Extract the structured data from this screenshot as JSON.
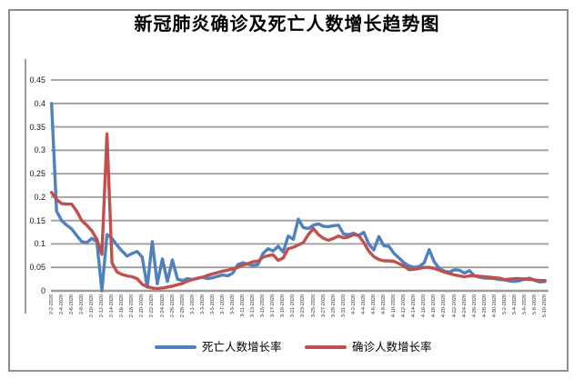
{
  "chart_data": {
    "type": "line",
    "title": "新冠肺炎确诊及死亡人数增长趋势图",
    "xlabel": "",
    "ylabel": "",
    "ylim": [
      0,
      0.45
    ],
    "grid": true,
    "legend_position": "bottom",
    "x_tick_every": 2,
    "yticks": [
      {
        "v": 0,
        "label": "0"
      },
      {
        "v": 0.05,
        "label": "0.05"
      },
      {
        "v": 0.1,
        "label": "0.1"
      },
      {
        "v": 0.15,
        "label": "0.15"
      },
      {
        "v": 0.2,
        "label": "0.2"
      },
      {
        "v": 0.25,
        "label": "0.25"
      },
      {
        "v": 0.3,
        "label": "0.3"
      },
      {
        "v": 0.35,
        "label": "0.35"
      },
      {
        "v": 0.4,
        "label": "0.4"
      },
      {
        "v": 0.45,
        "label": "0.45"
      }
    ],
    "x": [
      "2-2-2020",
      "2-3-2020",
      "2-4-2020",
      "2-5-2020",
      "2-6-2020",
      "2-7-2020",
      "2-8-2020",
      "2-9-2020",
      "2-10-2020",
      "2-11-2020",
      "2-12-2020",
      "2-13-2020",
      "2-14-2020",
      "2-15-2020",
      "2-16-2020",
      "2-17-2020",
      "2-18-2020",
      "2-19-2020",
      "2-20-2020",
      "2-21-2020",
      "2-22-2020",
      "2-23-2020",
      "2-24-2020",
      "2-25-2020",
      "2-26-2020",
      "2-27-2020",
      "2-28-2020",
      "2-29-2020",
      "3-1-2020",
      "3-2-2020",
      "3-3-2020",
      "3-4-2020",
      "3-5-2020",
      "3-6-2020",
      "3-7-2020",
      "3-8-2020",
      "3-9-2020",
      "3-10-2020",
      "3-11-2020",
      "3-12-2020",
      "3-13-2020",
      "3-14-2020",
      "3-15-2020",
      "3-16-2020",
      "3-17-2020",
      "3-18-2020",
      "3-19-2020",
      "3-20-2020",
      "3-21-2020",
      "3-22-2020",
      "3-23-2020",
      "3-24-2020",
      "3-25-2020",
      "3-26-2020",
      "3-27-2020",
      "3-28-2020",
      "3-29-2020",
      "3-30-2020",
      "3-31-2020",
      "4-1-2020",
      "4-2-2020",
      "4-3-2020",
      "4-4-2020",
      "4-5-2020",
      "4-6-2020",
      "4-7-2020",
      "4-8-2020",
      "4-9-2020",
      "4-10-2020",
      "4-11-2020",
      "4-12-2020",
      "4-13-2020",
      "4-14-2020",
      "4-15-2020",
      "4-16-2020",
      "4-17-2020",
      "4-18-2020",
      "4-19-2020",
      "4-20-2020",
      "4-21-2020",
      "4-22-2020",
      "4-23-2020",
      "4-24-2020",
      "4-25-2020",
      "4-26-2020",
      "4-27-2020",
      "4-28-2020",
      "4-29-2020",
      "4-30-2020",
      "5-1-2020",
      "5-2-2020",
      "5-3-2020",
      "5-4-2020",
      "5-5-2020",
      "5-6-2020",
      "5-7-2020",
      "5-8-2020",
      "5-9-2020",
      "5-10-2020"
    ],
    "series": [
      {
        "name": "死亡人数增长率",
        "color": "#4F81BD",
        "values": [
          0.4,
          0.17,
          0.15,
          0.14,
          0.132,
          0.118,
          0.105,
          0.103,
          0.112,
          0.105,
          0.0,
          0.12,
          0.112,
          0.097,
          0.085,
          0.074,
          0.08,
          0.084,
          0.072,
          0.008,
          0.105,
          0.015,
          0.068,
          0.02,
          0.066,
          0.025,
          0.022,
          0.026,
          0.024,
          0.027,
          0.029,
          0.026,
          0.028,
          0.031,
          0.034,
          0.032,
          0.038,
          0.056,
          0.06,
          0.057,
          0.054,
          0.056,
          0.08,
          0.09,
          0.085,
          0.095,
          0.083,
          0.117,
          0.11,
          0.153,
          0.135,
          0.133,
          0.14,
          0.143,
          0.138,
          0.137,
          0.139,
          0.14,
          0.121,
          0.12,
          0.123,
          0.118,
          0.125,
          0.1,
          0.087,
          0.116,
          0.096,
          0.095,
          0.08,
          0.07,
          0.06,
          0.053,
          0.05,
          0.052,
          0.06,
          0.088,
          0.062,
          0.048,
          0.042,
          0.04,
          0.045,
          0.044,
          0.038,
          0.043,
          0.032,
          0.029,
          0.027,
          0.027,
          0.026,
          0.024,
          0.023,
          0.021,
          0.02,
          0.022,
          0.025,
          0.027,
          0.022,
          0.019,
          0.02
        ]
      },
      {
        "name": "确诊人数增长率",
        "color": "#C0504D",
        "values": [
          0.21,
          0.195,
          0.186,
          0.185,
          0.185,
          0.17,
          0.15,
          0.14,
          0.128,
          0.11,
          0.078,
          0.335,
          0.06,
          0.04,
          0.035,
          0.032,
          0.03,
          0.026,
          0.014,
          0.009,
          0.006,
          0.005,
          0.006,
          0.008,
          0.01,
          0.013,
          0.016,
          0.021,
          0.024,
          0.027,
          0.029,
          0.033,
          0.036,
          0.039,
          0.042,
          0.044,
          0.047,
          0.05,
          0.055,
          0.058,
          0.062,
          0.063,
          0.072,
          0.075,
          0.077,
          0.065,
          0.07,
          0.09,
          0.093,
          0.098,
          0.103,
          0.12,
          0.133,
          0.12,
          0.112,
          0.108,
          0.112,
          0.117,
          0.113,
          0.115,
          0.12,
          0.118,
          0.103,
          0.085,
          0.073,
          0.067,
          0.064,
          0.064,
          0.063,
          0.058,
          0.053,
          0.045,
          0.046,
          0.048,
          0.05,
          0.05,
          0.048,
          0.044,
          0.04,
          0.037,
          0.034,
          0.032,
          0.03,
          0.032,
          0.032,
          0.031,
          0.03,
          0.029,
          0.028,
          0.027,
          0.024,
          0.025,
          0.026,
          0.026,
          0.025,
          0.024,
          0.023,
          0.022,
          0.022
        ]
      }
    ]
  }
}
